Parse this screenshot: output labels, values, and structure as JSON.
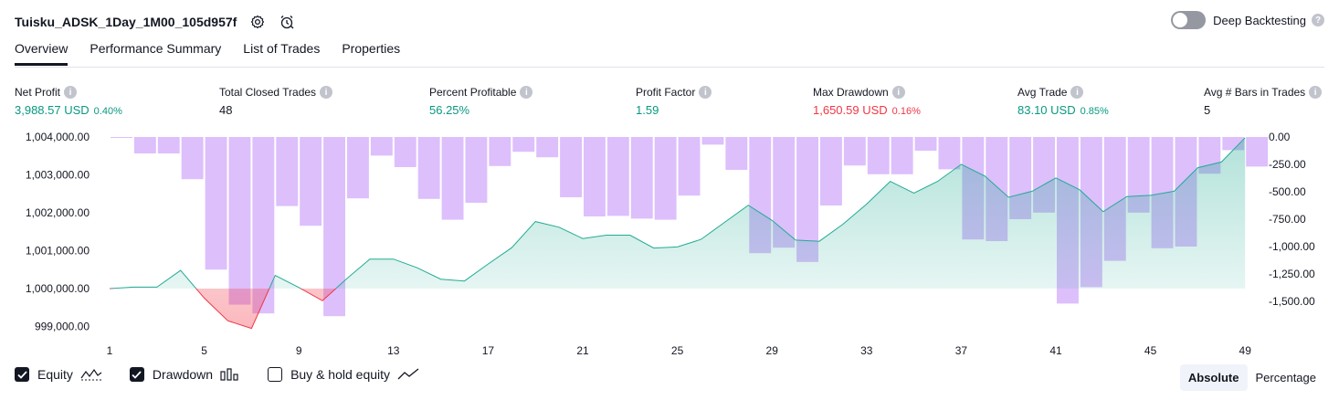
{
  "header": {
    "title": "Tuisku_ADSK_1Day_1M00_105d957f",
    "settings_icon": "gear-icon",
    "alert_icon": "alarm-clock-icon"
  },
  "deep_backtesting": {
    "label": "Deep Backtesting",
    "enabled": false
  },
  "tabs": [
    {
      "label": "Overview",
      "active": true
    },
    {
      "label": "Performance Summary",
      "active": false
    },
    {
      "label": "List of Trades",
      "active": false
    },
    {
      "label": "Properties",
      "active": false
    }
  ],
  "stats": {
    "net_profit": {
      "label": "Net Profit",
      "value": "3,988.57 USD",
      "pct": "0.40%"
    },
    "total_closed_trades": {
      "label": "Total Closed Trades",
      "value": "48"
    },
    "percent_profitable": {
      "label": "Percent Profitable",
      "value": "56.25%"
    },
    "profit_factor": {
      "label": "Profit Factor",
      "value": "1.59"
    },
    "max_drawdown": {
      "label": "Max Drawdown",
      "value": "1,650.59 USD",
      "pct": "0.16%"
    },
    "avg_trade": {
      "label": "Avg Trade",
      "value": "83.10 USD",
      "pct": "0.85%"
    },
    "avg_bars": {
      "label": "Avg # Bars in Trades",
      "value": "5"
    }
  },
  "legend": {
    "equity": {
      "label": "Equity",
      "checked": true
    },
    "drawdown": {
      "label": "Drawdown",
      "checked": true
    },
    "buy_hold": {
      "label": "Buy & hold equity",
      "checked": false
    }
  },
  "mode": {
    "absolute": "Absolute",
    "percentage": "Percentage",
    "selected": "Absolute"
  },
  "colors": {
    "equity_line": "#22ab94",
    "equity_fill": "#d6f1ea",
    "equity_negative": "#f23645",
    "drawdown": "#d7b4fb",
    "green": "#089981",
    "red": "#f23645"
  },
  "chart_data": {
    "type": "area",
    "x_tick_labels": [
      "1",
      "5",
      "9",
      "13",
      "17",
      "21",
      "25",
      "29",
      "33",
      "37",
      "41",
      "45",
      "49"
    ],
    "left_axis": {
      "ticks": [
        "1,004,000.00",
        "1,003,000.00",
        "1,002,000.00",
        "1,001,000.00",
        "1,000,000.00",
        "999,000.00"
      ],
      "range": [
        998700,
        1004000
      ]
    },
    "right_axis": {
      "ticks": [
        "0.00",
        "-250.00",
        "-500.00",
        "-750.00",
        "-1,000.00",
        "-1,250.00",
        "-1,500.00"
      ],
      "range": [
        -1650,
        0
      ]
    },
    "equity": {
      "x": [
        1,
        2,
        3,
        4,
        5,
        6,
        7,
        8,
        9,
        10,
        11,
        12,
        13,
        14,
        15,
        16,
        17,
        18,
        19,
        20,
        21,
        22,
        23,
        24,
        25,
        26,
        27,
        28,
        29,
        30,
        31,
        32,
        33,
        34,
        35,
        36,
        37,
        38,
        39,
        40,
        41,
        42,
        43,
        44,
        45,
        46,
        47,
        48,
        49
      ],
      "y": [
        1000000,
        1000040,
        1000040,
        1000480,
        999750,
        999150,
        998950,
        1000350,
        1000030,
        999680,
        1000250,
        1000780,
        1000780,
        1000550,
        1000250,
        1000200,
        1000650,
        1001080,
        1001770,
        1001620,
        1001320,
        1001410,
        1001410,
        1001070,
        1001100,
        1001300,
        1001750,
        1002200,
        1001800,
        1001280,
        1001250,
        1001700,
        1002230,
        1002830,
        1002520,
        1002830,
        1003280,
        1002970,
        1002410,
        1002570,
        1002920,
        1002610,
        1002030,
        1002430,
        1002460,
        1002570,
        1003190,
        1003340,
        1003980
      ]
    },
    "drawdown": {
      "x": [
        1,
        2,
        3,
        4,
        5,
        6,
        7,
        8,
        9,
        10,
        11,
        12,
        13,
        14,
        15,
        16,
        17,
        18,
        19,
        20,
        21,
        22,
        23,
        24,
        25,
        26,
        27,
        28,
        29,
        30,
        31,
        32,
        33,
        34,
        35,
        36,
        37,
        38,
        39,
        40,
        41,
        42,
        43,
        44,
        45,
        46,
        47,
        48,
        49
      ],
      "values": [
        -5,
        -150,
        -150,
        -385,
        -1210,
        -1530,
        -1610,
        -630,
        -810,
        -1635,
        -560,
        -170,
        -275,
        -565,
        -755,
        -600,
        -265,
        -135,
        -185,
        -550,
        -725,
        -720,
        -745,
        -755,
        -535,
        -70,
        -300,
        -1060,
        -1010,
        -1140,
        -625,
        -260,
        -340,
        -340,
        -125,
        -295,
        -935,
        -950,
        -750,
        -690,
        -1520,
        -1370,
        -1130,
        -690,
        -1015,
        -1000,
        -335,
        -120,
        -270
      ]
    }
  }
}
